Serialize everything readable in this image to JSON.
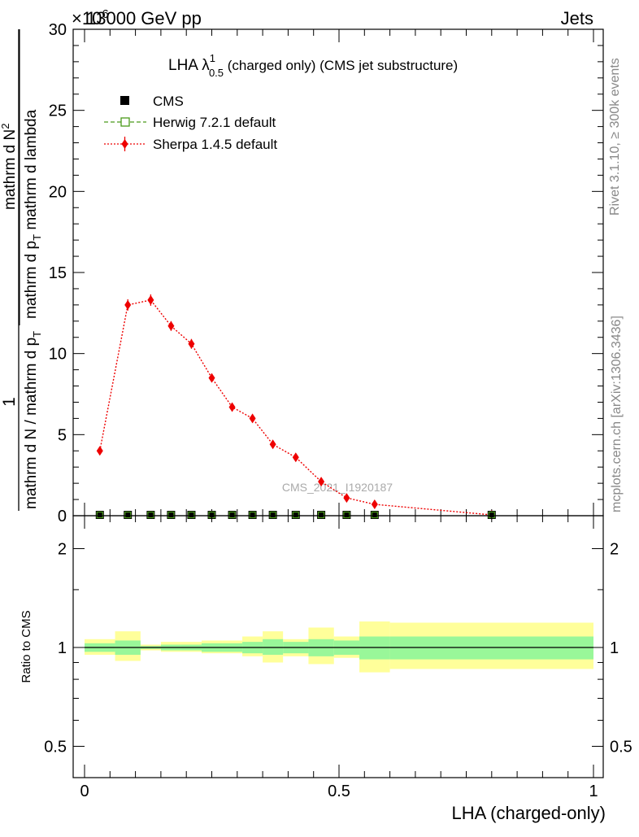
{
  "header": {
    "energy_label": "13000 GeV pp",
    "process_label": "Jets",
    "exponent_label": "×10",
    "exponent_power": "6"
  },
  "side": {
    "rivet_label": "Rivet 3.1.10, ≥ 300k events",
    "mcplots_label": "mcplots.cern.ch [arXiv:1306.3436]"
  },
  "watermark": "CMS_2021_I1920187",
  "main_title": {
    "prefix": "LHA λ",
    "superscript": "1",
    "subscript": "0.5",
    "suffix": " (charged only) (CMS jet substructure)"
  },
  "y_label": {
    "numerator": "1",
    "denominator_main": "mathrm d N / mathrm d p",
    "denominator_sub": "T",
    "part2": "mathrm d N",
    "part2_sup": "2",
    "part3": "mathrm d p",
    "part3_sub": "T",
    "part4": " mathrm d lambda",
    "full": "1 / (mathrm d N / mathrm d p_T) · mathrm d²N / (mathrm d p_T mathrm d lambda)"
  },
  "legend": [
    {
      "label": "CMS",
      "color": "#000000",
      "marker": "square-filled"
    },
    {
      "label": "Herwig 7.2.1 default",
      "color": "#4a9a1a",
      "marker": "square-open"
    },
    {
      "label": "Sherpa 1.4.5 default",
      "color": "#ee0000",
      "marker": "diamond"
    }
  ],
  "colors": {
    "band_inner": "#99f799",
    "band_outer": "#ffff9a",
    "cms": "#000000",
    "herwig": "#4a9a1a",
    "sherpa": "#ee0000"
  },
  "chart_data": [
    {
      "type": "line",
      "panel": "main",
      "title": "LHA λ^1_0.5 (charged only) (CMS jet substructure)",
      "xlabel": "LHA (charged-only)",
      "ylabel": "1/(dN/dpT) d²N/(dpT dλ)",
      "xlim": [
        0,
        1
      ],
      "ylim": [
        0,
        30
      ],
      "y_scale_exponent": 6,
      "yticks": [
        0,
        5,
        10,
        15,
        20,
        25,
        30
      ],
      "ytick_labels": [
        "0",
        "5",
        "10",
        "15",
        "20",
        "25",
        "30"
      ],
      "series": [
        {
          "name": "CMS",
          "x": [
            0.03,
            0.085,
            0.13,
            0.17,
            0.21,
            0.25,
            0.29,
            0.33,
            0.37,
            0.415,
            0.465,
            0.515,
            0.57,
            0.8
          ],
          "values": [
            0.0,
            0.0,
            0.0,
            0.0,
            0.0,
            0.0,
            0.0,
            0.0,
            0.0,
            0.0,
            0.0,
            0.0,
            0.0,
            0.0
          ]
        },
        {
          "name": "Herwig 7.2.1 default",
          "x": [
            0.03,
            0.085,
            0.13,
            0.17,
            0.21,
            0.25,
            0.29,
            0.33,
            0.37,
            0.415,
            0.465,
            0.515,
            0.57,
            0.8
          ],
          "values": [
            0.0,
            0.0,
            0.0,
            0.0,
            0.0,
            0.0,
            0.0,
            0.0,
            0.0,
            0.0,
            0.0,
            0.0,
            0.0,
            0.0
          ]
        },
        {
          "name": "Sherpa 1.4.5 default",
          "x": [
            0.03,
            0.085,
            0.13,
            0.17,
            0.21,
            0.25,
            0.29,
            0.33,
            0.37,
            0.415,
            0.465,
            0.515,
            0.57,
            0.8
          ],
          "values": [
            4.0,
            13.0,
            13.3,
            11.7,
            10.6,
            8.5,
            6.7,
            6.0,
            4.4,
            3.6,
            2.1,
            1.1,
            0.7,
            0.05
          ],
          "errors": [
            0.2,
            0.35,
            0.35,
            0.3,
            0.3,
            0.25,
            0.25,
            0.25,
            0.2,
            0.2,
            0.15,
            0.1,
            0.1,
            0.02
          ]
        }
      ]
    },
    {
      "type": "area",
      "panel": "ratio",
      "ylabel": "Ratio to CMS",
      "ylim": [
        0.4,
        2.5
      ],
      "y_scale": "log",
      "yticks": [
        0.5,
        1,
        2
      ],
      "ytick_labels": [
        "0.5",
        "1",
        "2"
      ],
      "xlim": [
        0,
        1
      ],
      "xticks": [
        0,
        0.5,
        1
      ],
      "xtick_labels": [
        "0",
        "0.5",
        "1"
      ],
      "bins": [
        [
          0.0,
          0.06
        ],
        [
          0.06,
          0.11
        ],
        [
          0.11,
          0.15
        ],
        [
          0.15,
          0.19
        ],
        [
          0.19,
          0.23
        ],
        [
          0.23,
          0.27
        ],
        [
          0.27,
          0.31
        ],
        [
          0.31,
          0.35
        ],
        [
          0.35,
          0.39
        ],
        [
          0.39,
          0.44
        ],
        [
          0.44,
          0.49
        ],
        [
          0.49,
          0.54
        ],
        [
          0.54,
          0.6
        ],
        [
          0.6,
          1.0
        ]
      ],
      "inner_band": [
        [
          0.97,
          1.03
        ],
        [
          0.95,
          1.05
        ],
        [
          0.99,
          1.01
        ],
        [
          0.98,
          1.02
        ],
        [
          0.98,
          1.02
        ],
        [
          0.97,
          1.03
        ],
        [
          0.97,
          1.03
        ],
        [
          0.96,
          1.04
        ],
        [
          0.95,
          1.06
        ],
        [
          0.96,
          1.04
        ],
        [
          0.94,
          1.06
        ],
        [
          0.95,
          1.05
        ],
        [
          0.92,
          1.08
        ],
        [
          0.92,
          1.08
        ]
      ],
      "outer_band": [
        [
          0.95,
          1.06
        ],
        [
          0.91,
          1.12
        ],
        [
          0.98,
          1.02
        ],
        [
          0.97,
          1.04
        ],
        [
          0.97,
          1.04
        ],
        [
          0.96,
          1.05
        ],
        [
          0.96,
          1.05
        ],
        [
          0.94,
          1.08
        ],
        [
          0.9,
          1.12
        ],
        [
          0.94,
          1.06
        ],
        [
          0.89,
          1.15
        ],
        [
          0.93,
          1.08
        ],
        [
          0.84,
          1.2
        ],
        [
          0.86,
          1.19
        ]
      ],
      "reference_line": 1.0
    }
  ]
}
